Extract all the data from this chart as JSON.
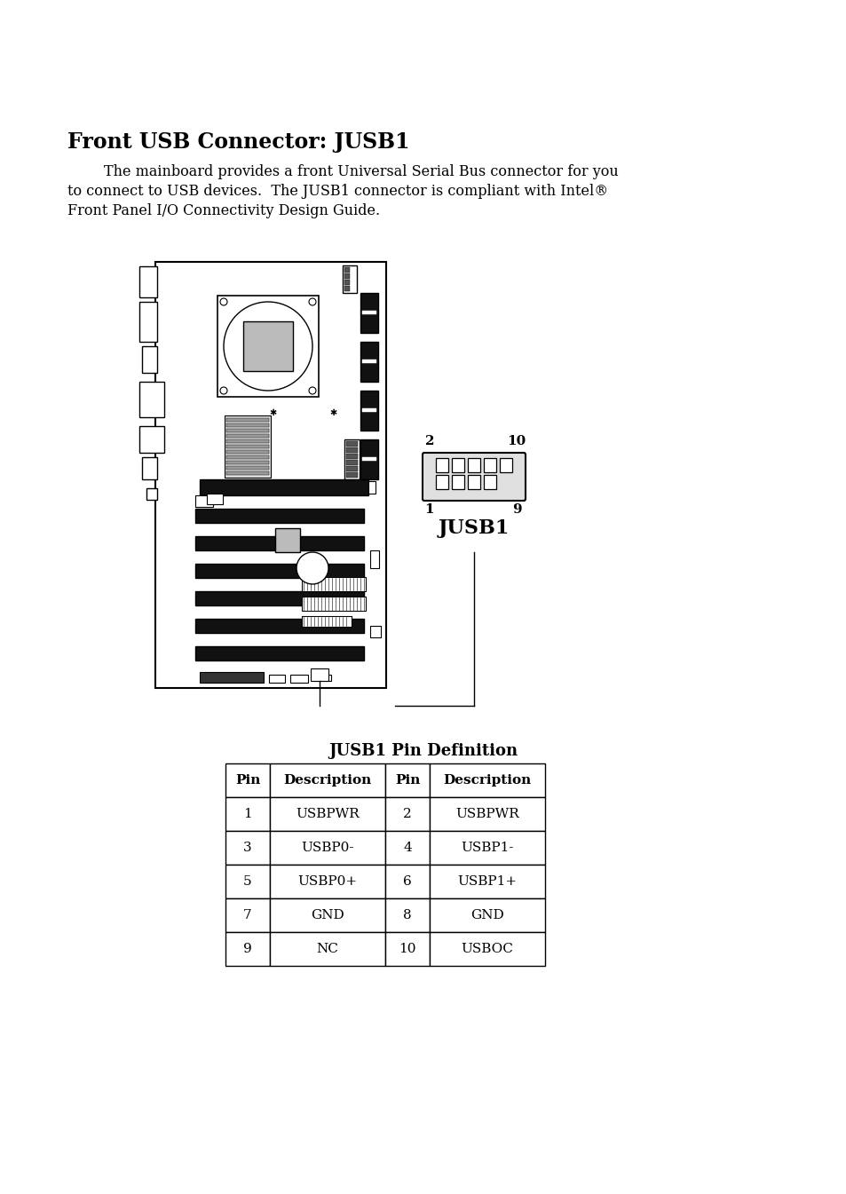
{
  "title": "Front USB Connector: JUSB1",
  "para_line1": "        The mainboard provides a front Universal Serial Bus connector for you",
  "para_line2": "to connect to USB devices.  The JUSB1 connector is compliant with Intel®",
  "para_line3": "Front Panel I/O Connectivity Design Guide.",
  "table_title": "JUSB1 Pin Definition",
  "table_headers": [
    "Pin",
    "Description",
    "Pin",
    "Description"
  ],
  "table_rows": [
    [
      "1",
      "USBPWR",
      "2",
      "USBPWR"
    ],
    [
      "3",
      "USBP0-",
      "4",
      "USBP1-"
    ],
    [
      "5",
      "USBP0+",
      "6",
      "USBP1+"
    ],
    [
      "7",
      "GND",
      "8",
      "GND"
    ],
    [
      "9",
      "NC",
      "10",
      "USBOC"
    ]
  ],
  "bg_color": "#ffffff",
  "text_color": "#000000"
}
